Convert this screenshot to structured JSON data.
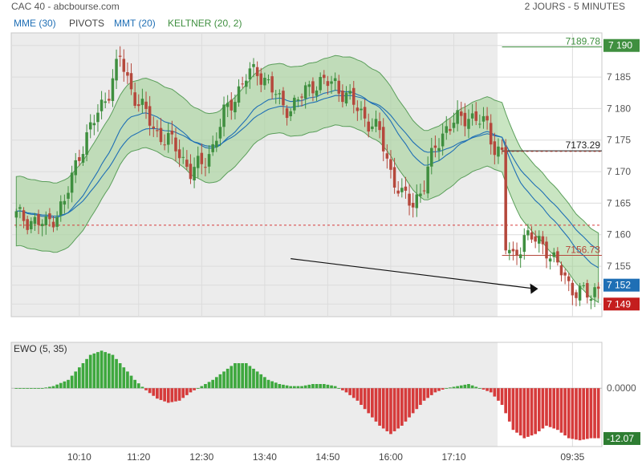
{
  "header": {
    "title": "CAC 40 - abcbourse.com",
    "period": "2 JOURS - 5 MINUTES"
  },
  "indicators": [
    {
      "label": "MME (30)",
      "color": "#1f6fb5"
    },
    {
      "label": "PIVOTS",
      "color": "#444444"
    },
    {
      "label": "MMT (20)",
      "color": "#1f6fb5"
    },
    {
      "label": "KELTNER (20, 2)",
      "color": "#3f8f3f"
    }
  ],
  "colors": {
    "up": "#3f8f3f",
    "down": "#b5483c",
    "band_fill": "#9ccf8f",
    "ewo_up": "#3ea83e",
    "ewo_down": "#d63b3b",
    "mme": "#1f6fb5",
    "session_bg": "#ececec"
  },
  "chart_data": [
    {
      "type": "candlestick",
      "name": "CAC 40",
      "yticks": [
        7149,
        7152,
        7155,
        7160,
        7165,
        7170,
        7175,
        7180,
        7185,
        7190
      ],
      "ytick_labels": [
        "7 149",
        "7 152",
        "7 155",
        "7 160",
        "7 165",
        "7 170",
        "7 175",
        "7 180",
        "7 185",
        "7 190"
      ],
      "ylim": [
        7147,
        7192
      ],
      "xticks": [
        "10:10",
        "11:20",
        "12:30",
        "13:40",
        "14:50",
        "16:00",
        "17:10",
        "09:35"
      ],
      "levels": [
        {
          "label": "7189.78",
          "value": 7189.78,
          "color": "#3f8f3f",
          "style": "solid",
          "start_day": 2
        },
        {
          "label": "7173.29",
          "value": 7173.29,
          "color": "#222222",
          "style": "solid",
          "start_day": 2
        },
        {
          "label": "7156.73",
          "value": 7156.73,
          "color": "#b5483c",
          "style": "solid",
          "start_day": 2
        },
        {
          "value": 7173.2,
          "color": "#b5483c",
          "style": "dashed",
          "start_day": 2
        },
        {
          "value": 7161.5,
          "color": "#d63b3b",
          "style": "dashed",
          "start_day": 1
        }
      ],
      "last_price": {
        "label": "7 152",
        "value": 7152
      },
      "low_marker": {
        "label": "7 149",
        "value": 7149
      },
      "keypoints": [
        [
          0,
          7163
        ],
        [
          8,
          7161.5
        ],
        [
          13,
          7165
        ],
        [
          17,
          7173
        ],
        [
          21,
          7178
        ],
        [
          25,
          7183
        ],
        [
          28,
          7188
        ],
        [
          31,
          7183
        ],
        [
          34,
          7180
        ],
        [
          38,
          7176
        ],
        [
          41,
          7175
        ],
        [
          44,
          7173
        ],
        [
          47,
          7170
        ],
        [
          50,
          7171
        ],
        [
          53,
          7174
        ],
        [
          56,
          7179
        ],
        [
          59,
          7182
        ],
        [
          62,
          7185
        ],
        [
          65,
          7186
        ],
        [
          68,
          7184
        ],
        [
          71,
          7181
        ],
        [
          74,
          7180
        ],
        [
          77,
          7182
        ],
        [
          80,
          7184
        ],
        [
          83,
          7184
        ],
        [
          86,
          7184
        ],
        [
          89,
          7182
        ],
        [
          92,
          7180
        ],
        [
          95,
          7178
        ],
        [
          98,
          7176
        ],
        [
          101,
          7170
        ],
        [
          104,
          7166
        ],
        [
          107,
          7165
        ],
        [
          110,
          7168
        ],
        [
          113,
          7174
        ],
        [
          116,
          7177
        ],
        [
          119,
          7178
        ],
        [
          122,
          7179
        ],
        [
          125,
          7178
        ],
        [
          127,
          7177
        ],
        [
          129,
          7174
        ],
        [
          131,
          7173
        ],
        [
          132,
          7158
        ],
        [
          134,
          7156
        ],
        [
          137,
          7160
        ],
        [
          140,
          7159
        ],
        [
          143,
          7158
        ],
        [
          146,
          7155
        ],
        [
          149,
          7152
        ],
        [
          152,
          7151
        ],
        [
          155,
          7150
        ],
        [
          157,
          7152
        ]
      ],
      "ewo_keypoints": [
        [
          0,
          0
        ],
        [
          7,
          0
        ],
        [
          10,
          0.5
        ],
        [
          14,
          2
        ],
        [
          17,
          5
        ],
        [
          20,
          8
        ],
        [
          23,
          9
        ],
        [
          26,
          8
        ],
        [
          29,
          5
        ],
        [
          32,
          2
        ],
        [
          35,
          -0.5
        ],
        [
          38,
          -2.5
        ],
        [
          41,
          -3.5
        ],
        [
          44,
          -3
        ],
        [
          47,
          -1
        ],
        [
          50,
          0.5
        ],
        [
          53,
          2
        ],
        [
          56,
          4
        ],
        [
          59,
          6
        ],
        [
          62,
          6
        ],
        [
          65,
          4
        ],
        [
          68,
          2
        ],
        [
          71,
          1
        ],
        [
          74,
          0.5
        ],
        [
          77,
          0.5
        ],
        [
          80,
          1
        ],
        [
          83,
          1
        ],
        [
          86,
          0.5
        ],
        [
          89,
          -1
        ],
        [
          92,
          -3
        ],
        [
          95,
          -6
        ],
        [
          98,
          -9
        ],
        [
          101,
          -11
        ],
        [
          104,
          -9
        ],
        [
          107,
          -6
        ],
        [
          110,
          -3
        ],
        [
          113,
          -1
        ],
        [
          116,
          0
        ],
        [
          119,
          0.5
        ],
        [
          122,
          1
        ],
        [
          125,
          0
        ],
        [
          128,
          -1
        ],
        [
          131,
          -4
        ],
        [
          134,
          -10
        ],
        [
          137,
          -12
        ],
        [
          140,
          -11
        ],
        [
          143,
          -9
        ],
        [
          146,
          -10
        ],
        [
          149,
          -12
        ],
        [
          152,
          -12.5
        ],
        [
          155,
          -12
        ],
        [
          157,
          -12
        ]
      ],
      "n_candles": 158,
      "day2_start_index": 131,
      "annotation": "arrow"
    },
    {
      "type": "bar",
      "name": "EWO (5, 35)",
      "label": "EWO (5, 35)",
      "yticks": [
        0
      ],
      "ytick_labels": [
        "0.0000"
      ],
      "ylim": [
        -14,
        11
      ],
      "last_value": {
        "label": "-12.07",
        "value": -12.07
      }
    }
  ]
}
